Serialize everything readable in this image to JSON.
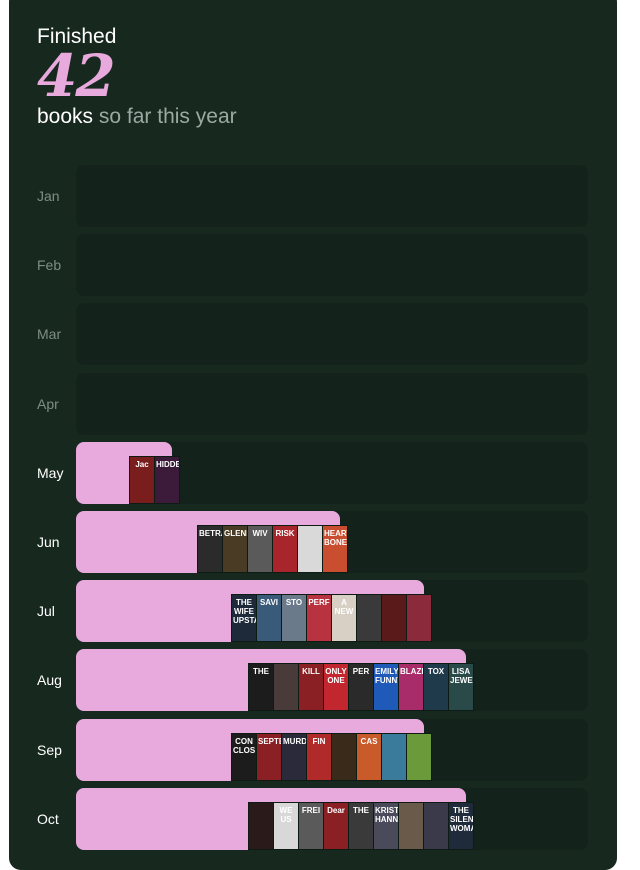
{
  "header": {
    "title": "Finished",
    "count": "42",
    "unit": "books",
    "suffix": "so far this year"
  },
  "colors": {
    "background": "#17281f",
    "track": "#13231b",
    "bar": "#e8a9dc",
    "accent": "#e8a9dc"
  },
  "max_books": 10,
  "months": [
    {
      "label": "Jan",
      "books": 0,
      "covers": []
    },
    {
      "label": "Feb",
      "books": 0,
      "covers": []
    },
    {
      "label": "Mar",
      "books": 0,
      "covers": []
    },
    {
      "label": "Apr",
      "books": 0,
      "covers": []
    },
    {
      "label": "May",
      "books": 2,
      "covers": [
        {
          "color": "#7a1d1d",
          "text": "Jac"
        },
        {
          "color": "#3b1a3a",
          "text": "HIDDEN"
        }
      ]
    },
    {
      "label": "Jun",
      "books": 6,
      "covers": [
        {
          "color": "#2b2b2b",
          "text": "BETRA"
        },
        {
          "color": "#4a3b24",
          "text": "GLENDY"
        },
        {
          "color": "#5a5a5a",
          "text": "WIV"
        },
        {
          "color": "#a8252c",
          "text": "RISK"
        },
        {
          "color": "#d9d9d9",
          "text": ""
        },
        {
          "color": "#c94d2f",
          "text": "HEART BONES"
        }
      ]
    },
    {
      "label": "Jul",
      "books": 8,
      "covers": [
        {
          "color": "#1e2a3a",
          "text": "THE WIFE UPSTA"
        },
        {
          "color": "#3a5a7a",
          "text": "SAVI"
        },
        {
          "color": "#6b7a8a",
          "text": "STO"
        },
        {
          "color": "#b8323f",
          "text": "PERF"
        },
        {
          "color": "#d8d0c4",
          "text": "A NEW"
        },
        {
          "color": "#3a3a3a",
          "text": ""
        },
        {
          "color": "#5a1a1a",
          "text": ""
        },
        {
          "color": "#8a2a3a",
          "text": ""
        }
      ]
    },
    {
      "label": "Aug",
      "books": 9,
      "covers": [
        {
          "color": "#1c1c1c",
          "text": "THE"
        },
        {
          "color": "#4a3b3b",
          "text": ""
        },
        {
          "color": "#8a1f24",
          "text": "KILL"
        },
        {
          "color": "#c2272f",
          "text": "ONLY ONE"
        },
        {
          "color": "#2a2a2a",
          "text": "PER"
        },
        {
          "color": "#1f5ab8",
          "text": "EMILY FUNNY"
        },
        {
          "color": "#a82c6a",
          "text": "BLAZE"
        },
        {
          "color": "#1f3a4a",
          "text": "TOX"
        },
        {
          "color": "#2a4a4a",
          "text": "LISA JEWELL"
        }
      ]
    },
    {
      "label": "Sep",
      "books": 8,
      "covers": [
        {
          "color": "#1c1c1c",
          "text": "CON CLOS"
        },
        {
          "color": "#8a1f24",
          "text": "SEPTE"
        },
        {
          "color": "#2a2a3a",
          "text": "MURDE"
        },
        {
          "color": "#b02a2a",
          "text": "FIN"
        },
        {
          "color": "#3a2a1a",
          "text": ""
        },
        {
          "color": "#c95a2a",
          "text": "CAS"
        },
        {
          "color": "#3a7a9a",
          "text": ""
        },
        {
          "color": "#6a9a3a",
          "text": ""
        }
      ]
    },
    {
      "label": "Oct",
      "books": 9,
      "covers": [
        {
          "color": "#2a1a1a",
          "text": ""
        },
        {
          "color": "#d8d8d8",
          "text": "WE US"
        },
        {
          "color": "#5a5a5a",
          "text": "FREI"
        },
        {
          "color": "#8a1f24",
          "text": "Dear"
        },
        {
          "color": "#3a3a3a",
          "text": "THE"
        },
        {
          "color": "#4a4a5a",
          "text": "KRISTIN HANN"
        },
        {
          "color": "#6a5a4a",
          "text": ""
        },
        {
          "color": "#3a3a4a",
          "text": ""
        },
        {
          "color": "#1f2a3a",
          "text": "THE SILENT WOMAN"
        }
      ]
    }
  ]
}
